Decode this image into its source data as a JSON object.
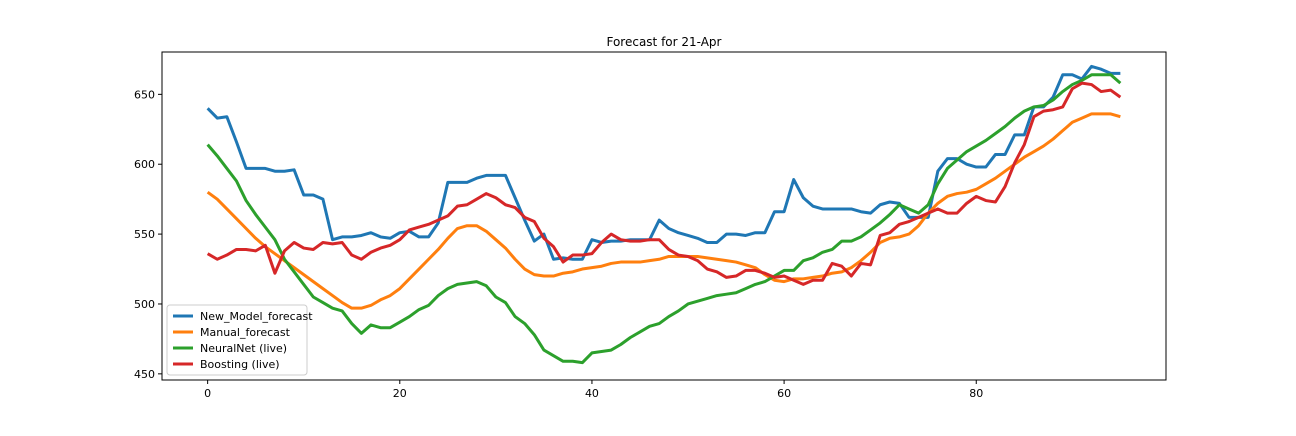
{
  "chart_data": {
    "type": "line",
    "title": "Forecast for 21-Apr",
    "x": [
      0,
      1,
      2,
      3,
      4,
      5,
      6,
      7,
      8,
      9,
      10,
      11,
      12,
      13,
      14,
      15,
      16,
      17,
      18,
      19,
      20,
      21,
      22,
      23,
      24,
      25,
      26,
      27,
      28,
      29,
      30,
      31,
      32,
      33,
      34,
      35,
      36,
      37,
      38,
      39,
      40,
      41,
      42,
      43,
      44,
      45,
      46,
      47,
      48,
      49,
      50,
      51,
      52,
      53,
      54,
      55,
      56,
      57,
      58,
      59,
      60,
      61,
      62,
      63,
      64,
      65,
      66,
      67,
      68,
      69,
      70,
      71,
      72,
      73,
      74,
      75,
      76,
      77,
      78,
      79,
      80,
      81,
      82,
      83,
      84,
      85,
      86,
      87,
      88,
      89,
      90,
      91,
      92,
      93,
      94,
      95
    ],
    "series": [
      {
        "name": "New_Model_forecast",
        "color": "#1f77b4",
        "values": [
          640,
          633,
          634,
          616,
          597,
          597,
          597,
          595,
          595,
          596,
          578,
          578,
          575,
          546,
          548,
          548,
          549,
          551,
          548,
          547,
          551,
          552,
          548,
          548,
          558,
          587,
          587,
          587,
          590,
          592,
          592,
          592,
          576,
          560,
          545,
          550,
          532,
          533,
          532,
          532,
          546,
          544,
          545,
          545,
          546,
          546,
          546,
          560,
          554,
          551,
          549,
          547,
          544,
          544,
          550,
          550,
          549,
          551,
          551,
          566,
          566,
          589,
          576,
          570,
          568,
          568,
          568,
          568,
          566,
          565,
          571,
          573,
          572,
          562,
          562,
          562,
          595,
          604,
          604,
          600,
          598,
          598,
          607,
          607,
          621,
          621,
          641,
          641,
          648,
          664,
          664,
          661,
          670,
          668,
          665,
          665
        ]
      },
      {
        "name": "Manual_forecast",
        "color": "#ff7f0e",
        "values": [
          580,
          575,
          568,
          561,
          554,
          547,
          541,
          536,
          531,
          526,
          521,
          516,
          511,
          506,
          501,
          497,
          497,
          499,
          503,
          506,
          511,
          518,
          525,
          532,
          539,
          547,
          554,
          556,
          556,
          552,
          546,
          540,
          532,
          525,
          521,
          520,
          520,
          522,
          523,
          525,
          526,
          527,
          529,
          530,
          530,
          530,
          531,
          532,
          534,
          534,
          534,
          534,
          533,
          532,
          531,
          530,
          528,
          526,
          521,
          517,
          516,
          518,
          518,
          519,
          520,
          522,
          523,
          526,
          531,
          537,
          544,
          547,
          548,
          550,
          556,
          565,
          572,
          577,
          579,
          580,
          582,
          586,
          590,
          595,
          600,
          605,
          609,
          613,
          618,
          624,
          630,
          633,
          636,
          636,
          636,
          634
        ]
      },
      {
        "name": "NeuralNet (live)",
        "color": "#2ca02c",
        "values": [
          614,
          606,
          597,
          588,
          574,
          564,
          555,
          546,
          532,
          523,
          514,
          505,
          501,
          497,
          495,
          486,
          479,
          485,
          483,
          483,
          487,
          491,
          496,
          499,
          506,
          511,
          514,
          515,
          516,
          513,
          505,
          501,
          491,
          486,
          478,
          467,
          463,
          459,
          459,
          458,
          465,
          466,
          467,
          471,
          476,
          480,
          484,
          486,
          491,
          495,
          500,
          502,
          504,
          506,
          507,
          508,
          511,
          514,
          516,
          520,
          524,
          524,
          531,
          533,
          537,
          539,
          545,
          545,
          548,
          553,
          558,
          564,
          571,
          568,
          565,
          571,
          586,
          597,
          603,
          609,
          613,
          617,
          622,
          627,
          633,
          638,
          641,
          642,
          646,
          652,
          657,
          660,
          664,
          664,
          664,
          658
        ]
      },
      {
        "name": "Boosting (live)",
        "color": "#d62728",
        "values": [
          536,
          532,
          535,
          539,
          539,
          538,
          542,
          522,
          538,
          544,
          540,
          539,
          544,
          543,
          544,
          535,
          532,
          537,
          540,
          542,
          546,
          553,
          555,
          557,
          560,
          563,
          570,
          571,
          575,
          579,
          576,
          571,
          569,
          562,
          559,
          547,
          541,
          530,
          535,
          535,
          536,
          544,
          550,
          546,
          545,
          545,
          546,
          546,
          539,
          535,
          534,
          531,
          525,
          523,
          519,
          520,
          524,
          524,
          522,
          519,
          520,
          517,
          514,
          517,
          517,
          529,
          527,
          520,
          529,
          528,
          549,
          551,
          557,
          559,
          562,
          565,
          568,
          565,
          565,
          572,
          577,
          574,
          573,
          584,
          601,
          614,
          634,
          638,
          639,
          641,
          654,
          658,
          657,
          652,
          653,
          648
        ]
      }
    ],
    "xlim": [
      -4.75,
      99.75
    ],
    "xticks": [
      0,
      20,
      40,
      60,
      80
    ],
    "ylim": [
      445.6,
      680.3
    ],
    "yticks": [
      450,
      500,
      550,
      600,
      650
    ],
    "legend": "lower left"
  }
}
